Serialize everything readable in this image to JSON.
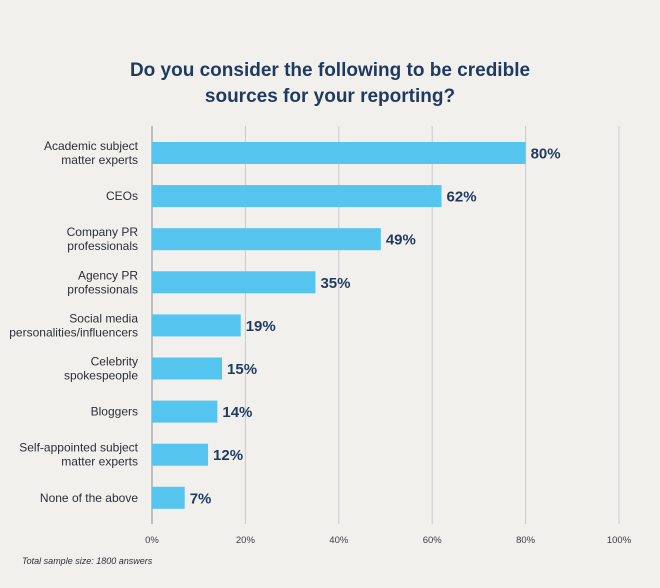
{
  "chart_data": {
    "type": "bar",
    "orientation": "horizontal",
    "title_lines": [
      "Do you consider the following to be credible",
      "sources for your reporting?"
    ],
    "categories": [
      [
        "Academic subject",
        "matter experts"
      ],
      [
        "CEOs"
      ],
      [
        "Company PR",
        "professionals"
      ],
      [
        "Agency PR",
        "professionals"
      ],
      [
        "Social media",
        "personalities/influencers"
      ],
      [
        "Celebrity",
        "spokespeople"
      ],
      [
        "Bloggers"
      ],
      [
        "Self-appointed subject",
        "matter experts"
      ],
      [
        "None of the above"
      ]
    ],
    "values": [
      80,
      62,
      49,
      35,
      19,
      15,
      14,
      12,
      7
    ],
    "value_labels": [
      "80%",
      "62%",
      "49%",
      "35%",
      "19%",
      "15%",
      "14%",
      "12%",
      "7%"
    ],
    "xlim": [
      0,
      100
    ],
    "x_ticks": [
      0,
      20,
      40,
      60,
      80,
      100
    ],
    "x_tick_labels": [
      "0%",
      "20%",
      "40%",
      "60%",
      "80%",
      "100%"
    ],
    "grid": true,
    "bar_color": "#55c4ee",
    "footnote": "Total sample size: 1800 answers"
  }
}
